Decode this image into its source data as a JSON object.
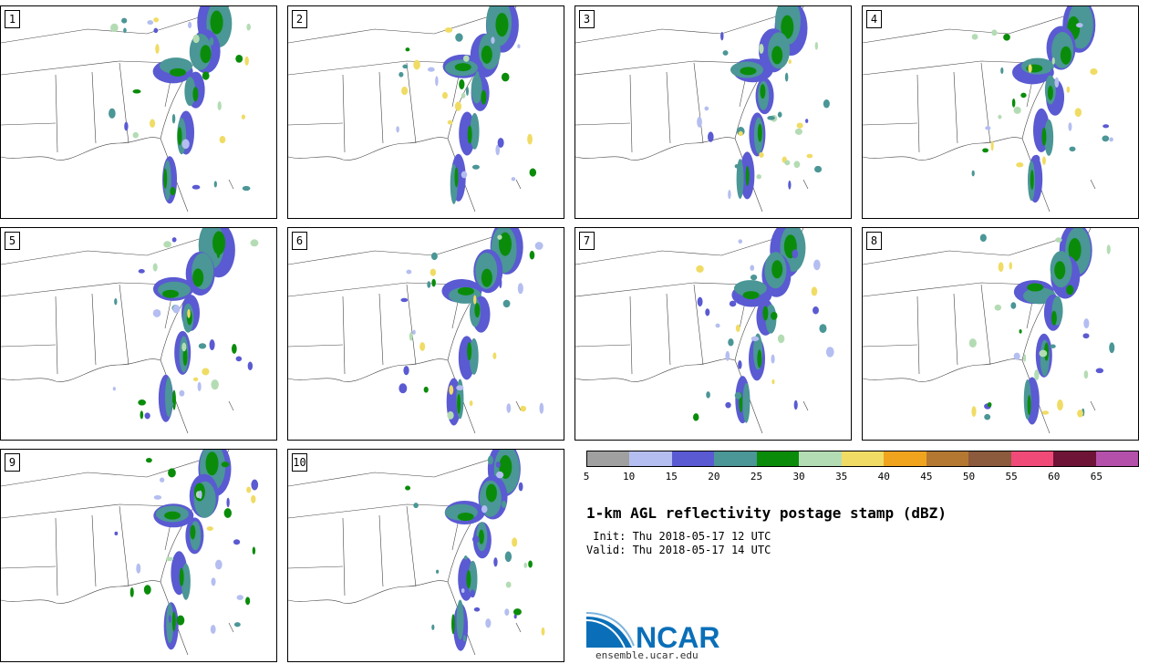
{
  "panels": [
    {
      "label": "1"
    },
    {
      "label": "2"
    },
    {
      "label": "3"
    },
    {
      "label": "4"
    },
    {
      "label": "5"
    },
    {
      "label": "6"
    },
    {
      "label": "7"
    },
    {
      "label": "8"
    },
    {
      "label": "9"
    },
    {
      "label": "10"
    }
  ],
  "colorbar": {
    "colors": [
      "#a0a0a0",
      "#b4bef0",
      "#5a5ad2",
      "#4b9696",
      "#0a8c0a",
      "#b4dcb4",
      "#f0dc64",
      "#f0a41e",
      "#b47832",
      "#8c5a3c",
      "#f04b78",
      "#6e1437",
      "#b450aa"
    ],
    "ticks": [
      "5",
      "10",
      "15",
      "20",
      "25",
      "30",
      "35",
      "40",
      "45",
      "50",
      "55",
      "60",
      "65"
    ]
  },
  "title": "1-km AGL reflectivity postage stamp (dBZ)",
  "init": " Init: Thu 2018-05-17 12 UTC",
  "valid": "Valid: Thu 2018-05-17 14 UTC",
  "logo": {
    "text": "NCAR",
    "url": "ensemble.ucar.edu"
  }
}
